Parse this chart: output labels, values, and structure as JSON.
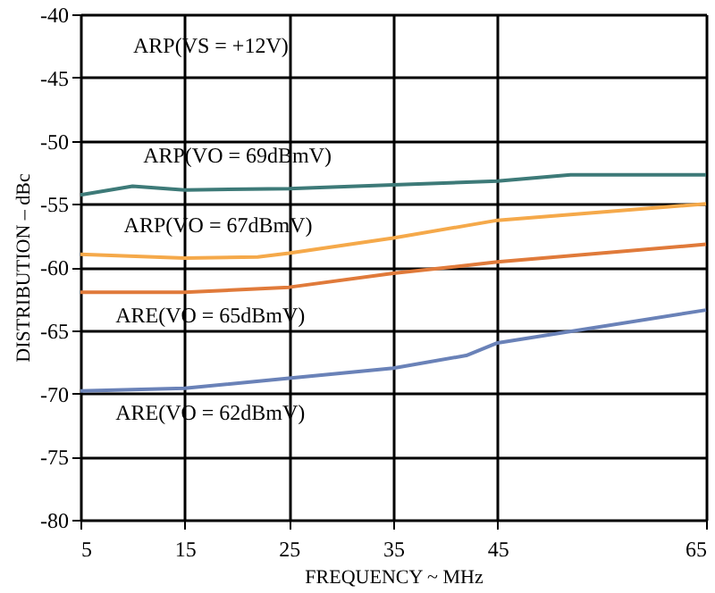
{
  "chart_data": {
    "type": "line",
    "xlabel": "FREQUENCY ~ MHz",
    "ylabel": "DISTRIBUTION – dBc",
    "xlim": [
      5,
      65
    ],
    "xticks": [
      5,
      15,
      25,
      35,
      45,
      65
    ],
    "ylim": [
      -80,
      -40
    ],
    "yticks": [
      -80,
      -75,
      -70,
      -65,
      -60,
      -55,
      -50,
      -45,
      -40
    ],
    "grid": true,
    "marker": "none",
    "line_style": "solid",
    "annotations": [
      "ARP(VS = +12V)"
    ],
    "series": [
      {
        "name": "ARP(VO = 69dBmV)",
        "color": "#3d7a78",
        "x": [
          5,
          10,
          15,
          25,
          35,
          45,
          52,
          65
        ],
        "values": [
          -54.3,
          -53.6,
          -53.9,
          -53.8,
          -53.5,
          -53.2,
          -52.7,
          -52.7
        ]
      },
      {
        "name": "ARP(VO = 67dBmV)",
        "color": "#f5a94a",
        "x": [
          5,
          15,
          22,
          25,
          35,
          45,
          65
        ],
        "values": [
          -59,
          -59.3,
          -59.2,
          -58.9,
          -57.7,
          -56.3,
          -55
        ]
      },
      {
        "name": "ARE(VO = 65dBmV)",
        "color": "#e07a3a",
        "x": [
          5,
          15,
          25,
          35,
          45,
          65
        ],
        "values": [
          -62,
          -62,
          -61.6,
          -60.5,
          -59.6,
          -58.2
        ]
      },
      {
        "name": "ARE(VO = 62dBmV)",
        "color": "#6a82b8",
        "x": [
          5,
          15,
          25,
          35,
          42,
          45,
          65
        ],
        "values": [
          -69.8,
          -69.6,
          -68.8,
          -68,
          -67,
          -66,
          -63.4
        ]
      }
    ]
  }
}
